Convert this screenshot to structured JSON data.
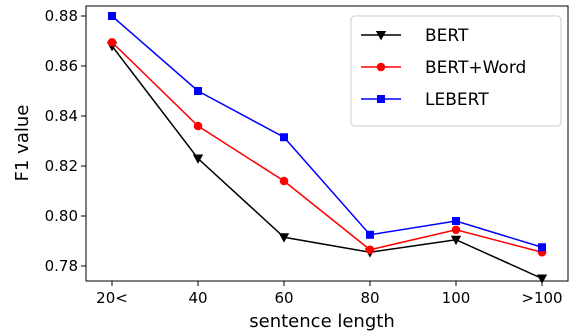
{
  "chart_data": {
    "type": "line",
    "title": "",
    "xlabel": "sentence length",
    "ylabel": "F1 value",
    "categories": [
      "20<",
      "40",
      "60",
      "80",
      "100",
      ">100"
    ],
    "ylim": [
      0.774,
      0.884
    ],
    "yticks": [
      0.78,
      0.8,
      0.82,
      0.84,
      0.86,
      0.88
    ],
    "ytick_labels": [
      "0.78",
      "0.80",
      "0.82",
      "0.84",
      "0.86",
      "0.88"
    ],
    "grid": false,
    "legend_position": "top-right",
    "series": [
      {
        "name": "BERT",
        "color": "#000000",
        "marker": "triangle-down",
        "values": [
          0.868,
          0.823,
          0.7915,
          0.7855,
          0.7905,
          0.775
        ]
      },
      {
        "name": "BERT+Word",
        "color": "#ff0000",
        "marker": "circle",
        "values": [
          0.8695,
          0.836,
          0.814,
          0.7865,
          0.7945,
          0.7855
        ]
      },
      {
        "name": "LEBERT",
        "color": "#0000ff",
        "marker": "square",
        "values": [
          0.88,
          0.85,
          0.8315,
          0.7925,
          0.798,
          0.7875
        ]
      }
    ]
  }
}
